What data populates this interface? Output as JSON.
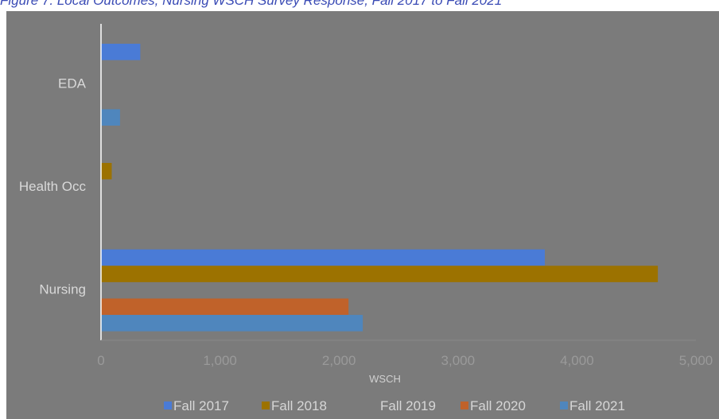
{
  "caption": "Figure 7. Local Outcomes, Nursing WSCH Survey Response, Fall 2017 to Fall 2021",
  "chart_data": {
    "type": "bar",
    "orientation": "horizontal",
    "title": "",
    "xlabel": "WSCH",
    "ylabel": "",
    "xlim": [
      0,
      5000
    ],
    "x_ticks": [
      0,
      1000,
      2000,
      3000,
      4000,
      5000
    ],
    "x_tick_labels": [
      "0",
      "1,000",
      "2,000",
      "3,000",
      "4,000",
      "5,000"
    ],
    "categories": [
      "EDA",
      "Health Occ",
      "Nursing"
    ],
    "series": [
      {
        "name": "Fall 2017",
        "color": "#4a7bd6",
        "values": [
          330,
          0,
          3730
        ]
      },
      {
        "name": "Fall 2018",
        "color": "#9c7200",
        "values": [
          0,
          90,
          4680
        ]
      },
      {
        "name": "Fall 2019",
        "color": "#7b7b7b",
        "values": [
          0,
          0,
          0
        ]
      },
      {
        "name": "Fall 2020",
        "color": "#c0622a",
        "values": [
          0,
          0,
          2080
        ]
      },
      {
        "name": "Fall 2021",
        "color": "#4f86bd",
        "values": [
          160,
          0,
          2200
        ]
      }
    ],
    "grid": false,
    "legend_position": "bottom"
  }
}
